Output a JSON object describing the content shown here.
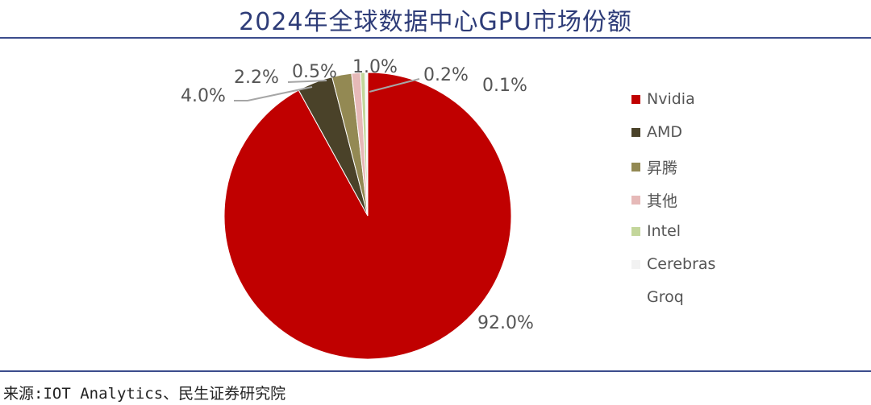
{
  "title": "2024年全球数据中心GPU市场份额",
  "source": "来源:IOT Analytics、民生证券研究院",
  "chart_data": {
    "type": "pie",
    "title": "2024年全球数据中心GPU市场份额",
    "categories": [
      "Nvidia",
      "AMD",
      "昇腾",
      "其他",
      "Intel",
      "Cerebras",
      "Groq"
    ],
    "values": [
      92.0,
      4.0,
      2.2,
      1.0,
      0.5,
      0.2,
      0.1
    ],
    "labels": [
      "92.0%",
      "4.0%",
      "2.2%",
      "1.0%",
      "0.5%",
      "0.2%",
      "0.1%"
    ],
    "colors": [
      "#C00000",
      "#4A4229",
      "#938953",
      "#E6B9B8",
      "#C3D69B",
      "#F2F2F2",
      "#FFFFFF"
    ],
    "legend": "right"
  }
}
